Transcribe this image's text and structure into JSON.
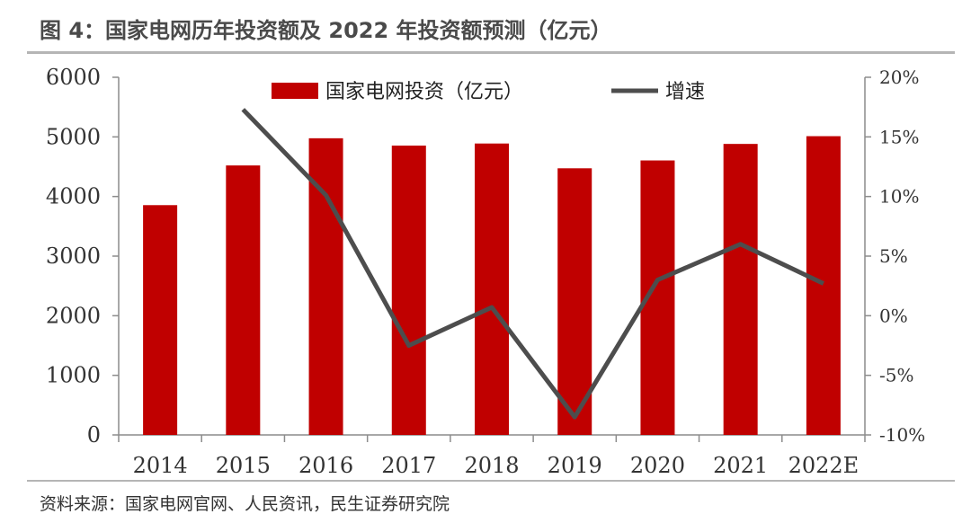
{
  "title": "图 4：国家电网历年投资额及 2022 年投资额预测（亿元）",
  "source": "资料来源：国家电网官网、人民资讯，民生证券研究院",
  "chart_data": {
    "type": "bar",
    "categories": [
      "2014",
      "2015",
      "2016",
      "2017",
      "2018",
      "2019",
      "2020",
      "2021",
      "2022E"
    ],
    "series": [
      {
        "name": "国家电网投资（亿元）",
        "type": "bar",
        "axis": "left",
        "color": "#c00000",
        "values": [
          3855,
          4521,
          4977,
          4854,
          4889,
          4473,
          4605,
          4882,
          5012
        ]
      },
      {
        "name": "增速",
        "type": "line",
        "axis": "right",
        "color": "#4d4d4d",
        "values": [
          null,
          17.3,
          10.1,
          -2.5,
          0.7,
          -8.5,
          3.0,
          6.0,
          2.7
        ]
      }
    ],
    "ylim": [
      0,
      6000
    ],
    "yticks": [
      0,
      1000,
      2000,
      3000,
      4000,
      5000,
      6000
    ],
    "y2lim": [
      -10,
      20
    ],
    "y2ticks": [
      -10,
      -5,
      0,
      5,
      10,
      15,
      20
    ],
    "y2_tick_labels": [
      "-10%",
      "-5%",
      "0%",
      "5%",
      "10%",
      "15%",
      "20%"
    ],
    "legend": "top-center",
    "grid": false
  }
}
